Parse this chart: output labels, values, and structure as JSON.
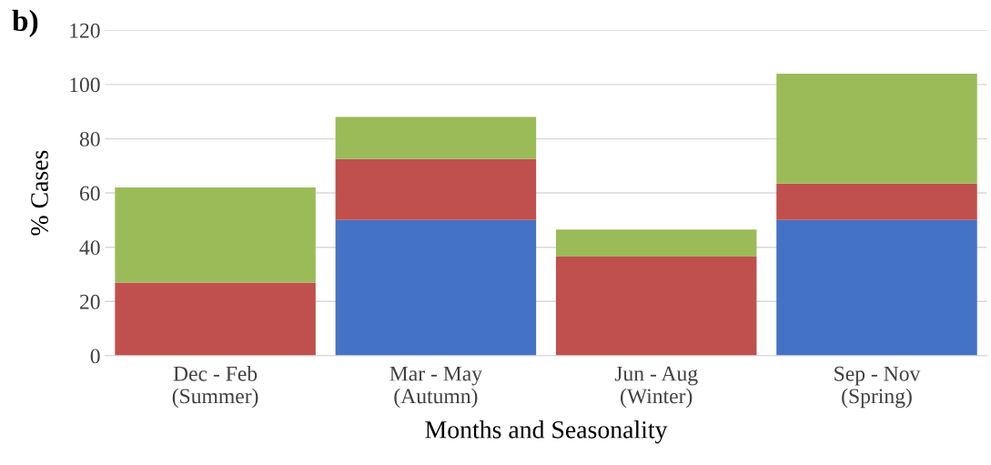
{
  "chart_data": {
    "type": "bar",
    "stacked": true,
    "categories": [
      "Dec - Feb\n(Summer)",
      "Mar - May\n(Autumn)",
      "Jun - Aug\n(Winter)",
      "Sep - Nov\n(Spring)"
    ],
    "series": [
      {
        "color": "#4472c4",
        "values": [
          0,
          50,
          0,
          50
        ]
      },
      {
        "color": "#c0504d",
        "values": [
          27,
          22.5,
          36.5,
          13.5
        ]
      },
      {
        "color": "#9bbb59",
        "values": [
          35,
          15.5,
          10,
          40.5
        ]
      }
    ],
    "xlabel": "Months and Seasonality",
    "ylabel": "% Cases",
    "ylim": [
      0,
      120
    ],
    "yticks": [
      0,
      20,
      40,
      60,
      80,
      100,
      120
    ],
    "grid": "y",
    "annotations": [
      "b)"
    ]
  }
}
